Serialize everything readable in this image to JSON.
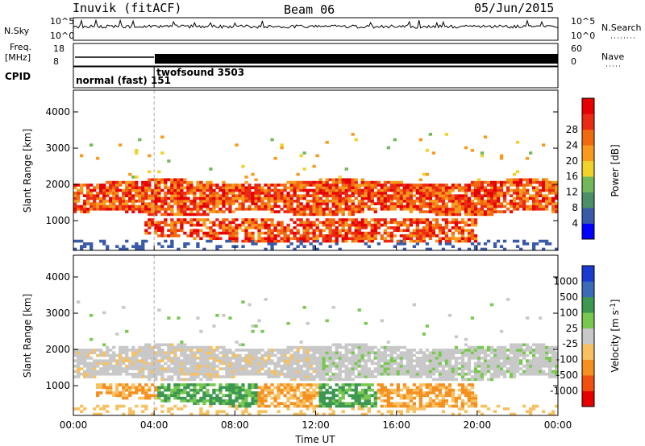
{
  "header": {
    "station": "Inuvik (fitACF)",
    "beam": "Beam 06",
    "date": "05/Jun/2015"
  },
  "strip_labels": {
    "nsky": "N.Sky",
    "nsearch": "N.Search",
    "freq_line1": "Freq.",
    "freq_line2": "[MHz]",
    "nave": "Nave",
    "cpid": "CPID",
    "nsky_ticks": [
      "10^5",
      "10^0"
    ],
    "nsearch_ticks": [
      "10^5",
      "10^0"
    ],
    "freq_ticks": [
      "18",
      "8"
    ],
    "nave_ticks": [
      "60",
      "0"
    ]
  },
  "cpid_segments": [
    {
      "label": "normal (fast)",
      "id": "151",
      "start_hour": 0,
      "end_hour": 4
    },
    {
      "label": "twofsound",
      "id": "3503",
      "start_hour": 4,
      "end_hour": 24
    }
  ],
  "colors": {
    "power": [
      "#0000ff",
      "#3a5aa8",
      "#4a8f68",
      "#72b85a",
      "#f0d22a",
      "#f79a1e",
      "#f26a10",
      "#ea2a12",
      "#e60000"
    ],
    "velocity": [
      "#e60000",
      "#f05010",
      "#f59020",
      "#f7c060",
      "#c8c8c8",
      "#78c850",
      "#3c9850",
      "#3a6ab8",
      "#1a3ad0"
    ]
  },
  "chart_data": [
    {
      "type": "heatmap",
      "title": "",
      "xlabel": "",
      "ylabel": "Slant Range [km]",
      "xlim": [
        0,
        24
      ],
      "ylim": [
        180,
        4600
      ],
      "yticks": [
        1000,
        2000,
        3000,
        4000
      ],
      "ytick_labels": [
        "1000",
        "2000",
        "3000",
        "4000"
      ],
      "colorbar": {
        "label": "Power [dB]",
        "ticks": [
          "4",
          "8",
          "12",
          "16",
          "20",
          "24",
          "28"
        ]
      },
      "features": [
        {
          "name": "upper band",
          "range_km": [
            1150,
            2050
          ],
          "hours": [
            0,
            24
          ]
        },
        {
          "name": "lower band",
          "range_km": [
            350,
            1000
          ],
          "hours": [
            3.5,
            20
          ]
        }
      ]
    },
    {
      "type": "heatmap",
      "title": "",
      "xlabel": "Time UT",
      "ylabel": "Slant Range [km]",
      "xlim": [
        0,
        24
      ],
      "ylim": [
        180,
        4600
      ],
      "yticks": [
        1000,
        2000,
        3000,
        4000
      ],
      "ytick_labels": [
        "1000",
        "2000",
        "3000",
        "4000"
      ],
      "xticks": [
        0,
        4,
        8,
        12,
        16,
        20,
        24
      ],
      "xtick_labels": [
        "00:00",
        "04:00",
        "08:00",
        "12:00",
        "16:00",
        "20:00",
        "00:00"
      ],
      "colorbar": {
        "label": "Velocity [m s^-1]",
        "ticks": [
          "1000",
          "500",
          "100",
          "25",
          "-25",
          "-100",
          "-500",
          "-1000"
        ]
      },
      "features": [
        {
          "name": "ground scatter (grey)",
          "range_km": [
            1150,
            2050
          ],
          "hours": [
            0,
            24
          ]
        },
        {
          "name": "lower band",
          "range_km": [
            350,
            1000
          ],
          "hours": [
            1,
            20
          ]
        }
      ]
    }
  ]
}
